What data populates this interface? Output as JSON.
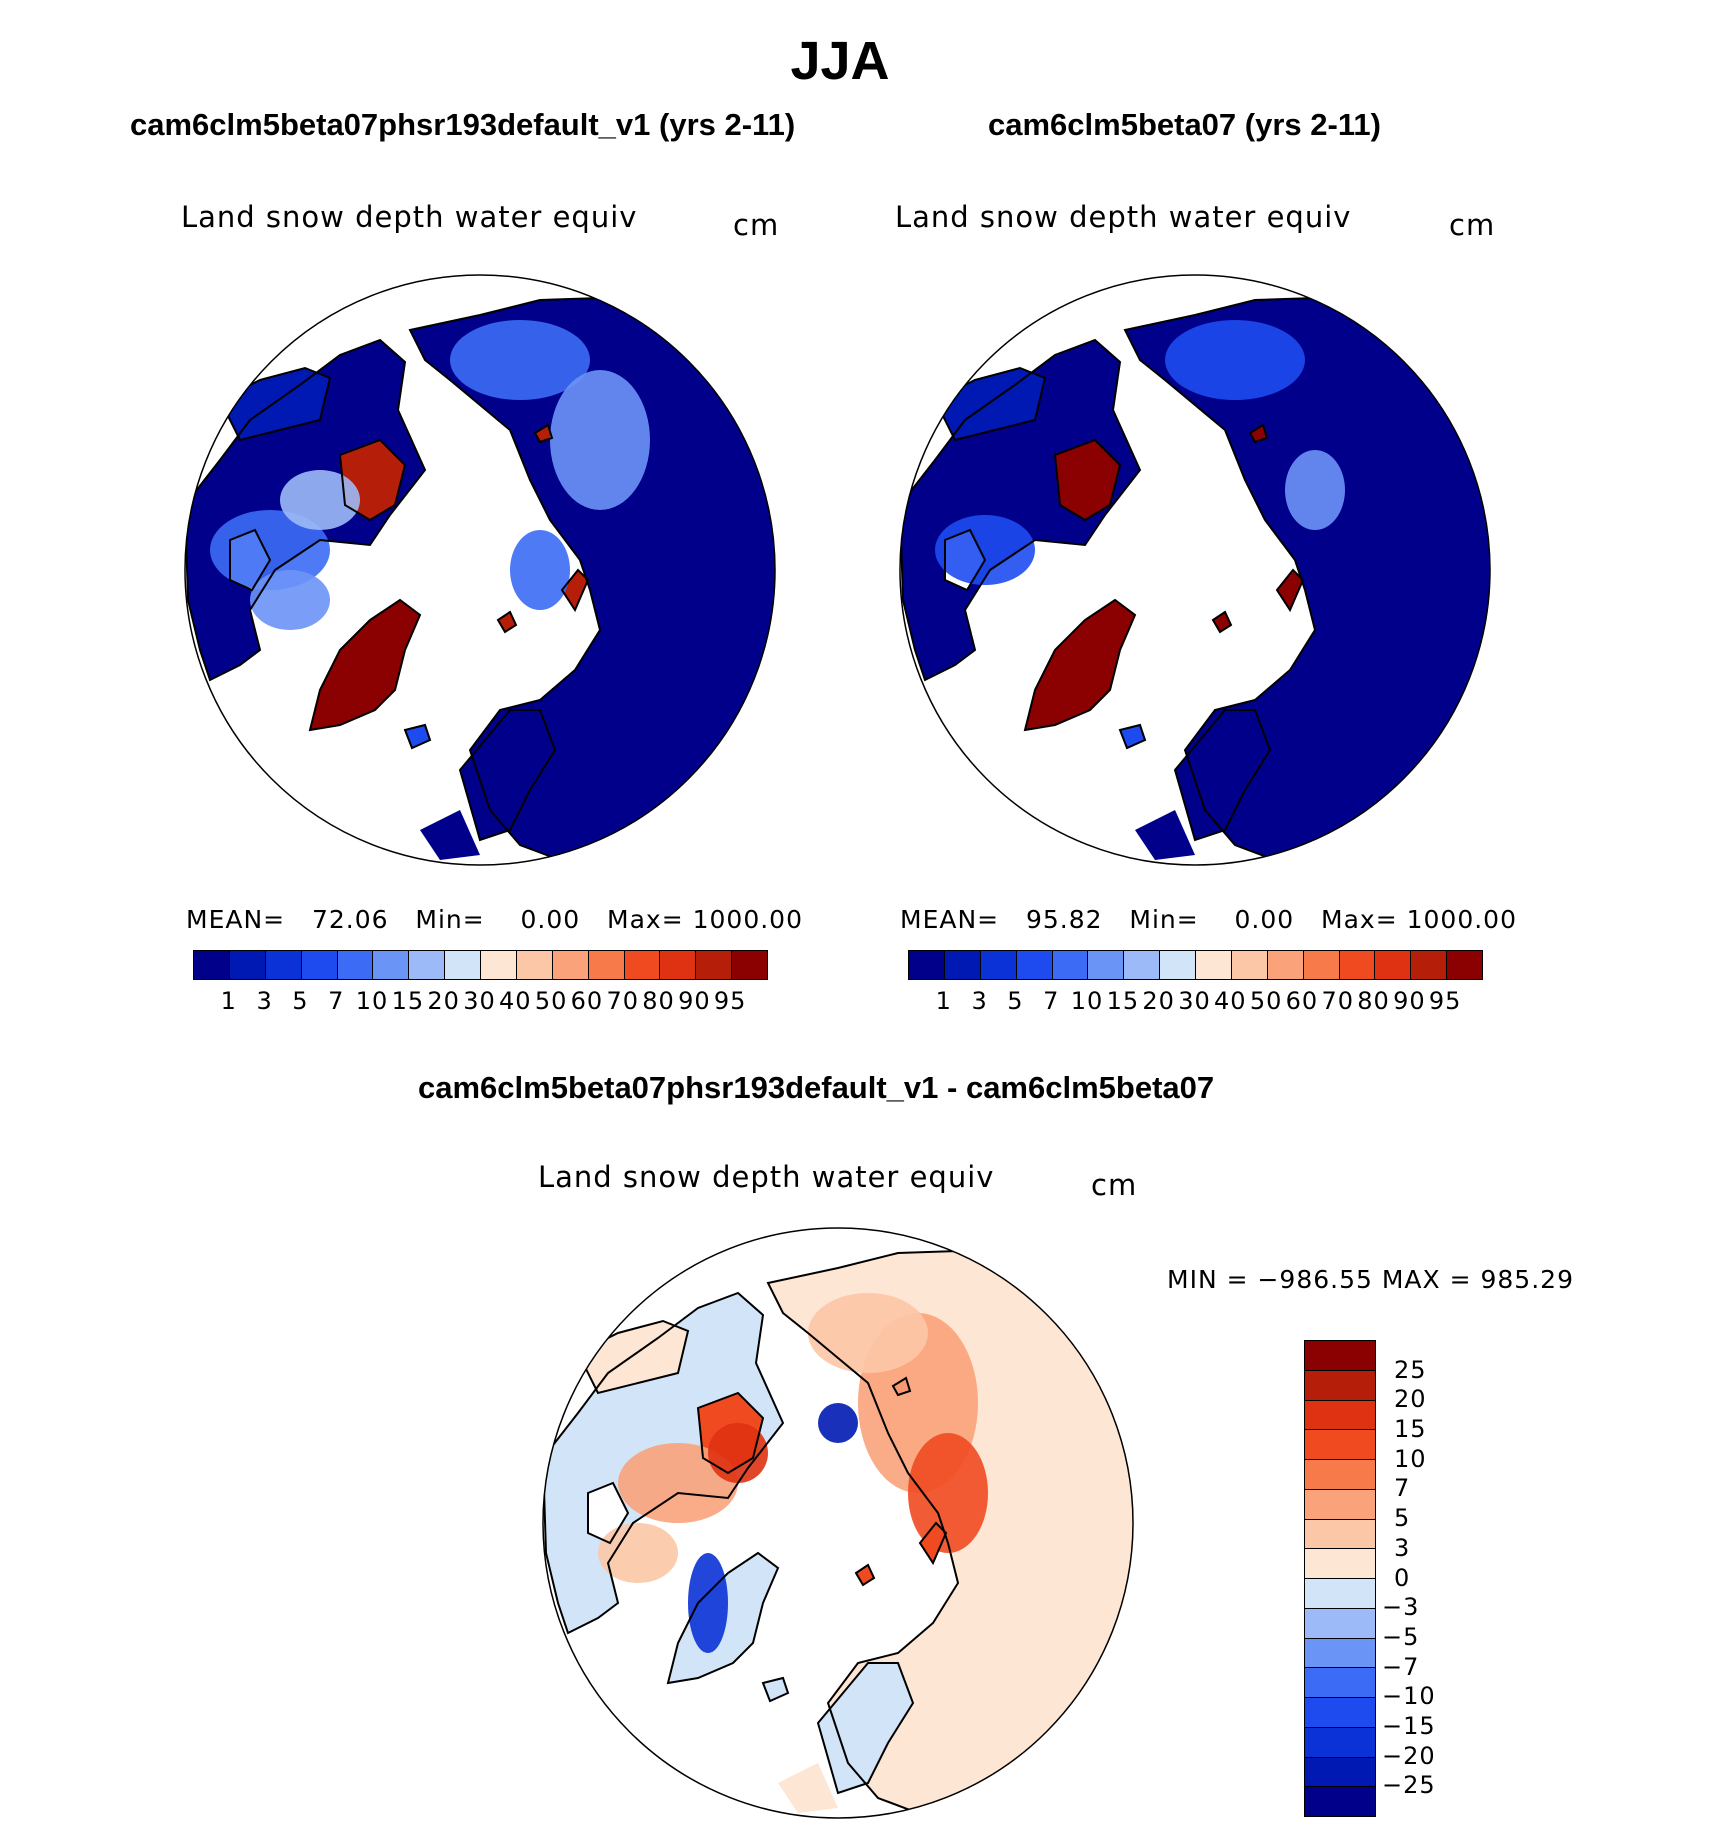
{
  "main_title": "JJA",
  "panels": [
    {
      "title": "cam6clm5beta07phsr193default_v1 (yrs 2-11)",
      "variable": "Land snow depth water equiv",
      "unit": "cm",
      "stats": {
        "mean_label": "MEAN=",
        "mean": "72.06",
        "min_label": "Min=",
        "min": "0.00",
        "max_label": "Max=",
        "max": "1000.00"
      }
    },
    {
      "title": "cam6clm5beta07 (yrs 2-11)",
      "variable": "Land snow depth water equiv",
      "unit": "cm",
      "stats": {
        "mean_label": "MEAN=",
        "mean": "95.82",
        "min_label": "Min=",
        "min": "0.00",
        "max_label": "Max=",
        "max": "1000.00"
      }
    },
    {
      "title": "cam6clm5beta07phsr193default_v1 - cam6clm5beta07",
      "variable": "Land snow depth water equiv",
      "unit": "cm",
      "stats_text": "MIN = −986.55 MAX = 985.29"
    }
  ],
  "colors": {
    "abs_levels": [
      "#00008b",
      "#0019b3",
      "#0a32d6",
      "#1e4bf0",
      "#3c6bf5",
      "#6b94f7",
      "#9cbaf7",
      "#d2e4f7",
      "#fde6d3",
      "#fcc7a6",
      "#faa27a",
      "#f77a4a",
      "#f04a21",
      "#de3212",
      "#b51e09",
      "#8b0000"
    ],
    "diff_levels": [
      "#8b0000",
      "#b51e09",
      "#de3212",
      "#f04a21",
      "#f77a4a",
      "#faa27a",
      "#fcc7a6",
      "#fde6d3",
      "#d2e4f7",
      "#9cbaf7",
      "#6b94f7",
      "#3c6bf5",
      "#1e4bf0",
      "#0a32d6",
      "#0019b3",
      "#00008b"
    ],
    "land_bg": "#ffffff",
    "coast": "#000000"
  },
  "chart_data": [
    {
      "type": "heatmap",
      "projection": "north polar stereographic",
      "title": "cam6clm5beta07phsr193default_v1 (yrs 2-11)",
      "variable": "Land snow depth water equiv",
      "unit": "cm",
      "colorbar_ticks": [
        "1",
        "3",
        "5",
        "7",
        "10",
        "15",
        "20",
        "30",
        "40",
        "50",
        "60",
        "70",
        "80",
        "90",
        "95"
      ],
      "mean": 72.06,
      "min": 0.0,
      "max": 1000.0
    },
    {
      "type": "heatmap",
      "projection": "north polar stereographic",
      "title": "cam6clm5beta07 (yrs 2-11)",
      "variable": "Land snow depth water equiv",
      "unit": "cm",
      "colorbar_ticks": [
        "1",
        "3",
        "5",
        "7",
        "10",
        "15",
        "20",
        "30",
        "40",
        "50",
        "60",
        "70",
        "80",
        "90",
        "95"
      ],
      "mean": 95.82,
      "min": 0.0,
      "max": 1000.0
    },
    {
      "type": "heatmap",
      "projection": "north polar stereographic",
      "title": "cam6clm5beta07phsr193default_v1 - cam6clm5beta07",
      "variable": "Land snow depth water equiv",
      "unit": "cm",
      "colorbar_ticks": [
        "25",
        "20",
        "15",
        "10",
        "7",
        "5",
        "3",
        "0",
        "−3",
        "−5",
        "−7",
        "−10",
        "−15",
        "−20",
        "−25"
      ],
      "min": -986.55,
      "max": 985.29
    }
  ]
}
